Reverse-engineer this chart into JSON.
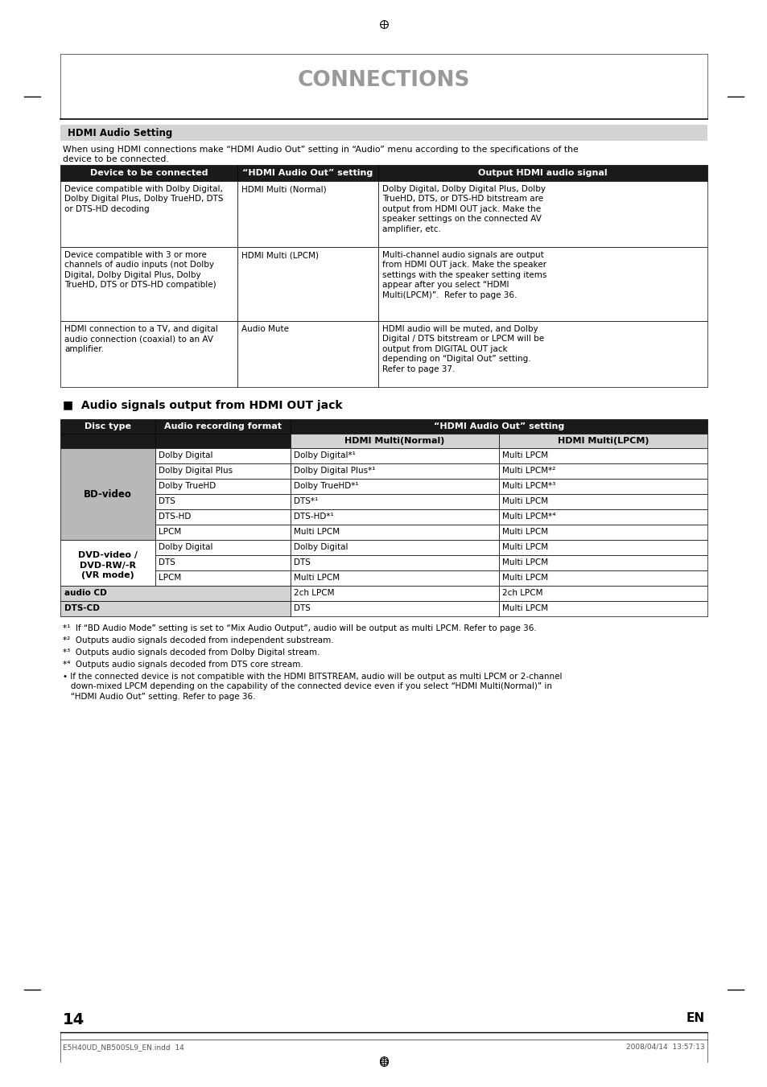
{
  "page_title": "CONNECTIONS",
  "section1_header": "HDMI Audio Setting",
  "section1_intro": "When using HDMI connections make “HDMI Audio Out” setting in “Audio” menu according to the specifications of the\ndevice to be connected.",
  "table1_headers": [
    "Device to be connected",
    "“HDMI Audio Out” setting",
    "Output HDMI audio signal"
  ],
  "table1_rows": [
    [
      "Device compatible with Dolby Digital,\nDolby Digital Plus, Dolby TrueHD, DTS\nor DTS-HD decoding",
      "HDMI Multi (Normal)",
      "Dolby Digital, Dolby Digital Plus, Dolby\nTrueHD, DTS, or DTS-HD bitstream are\noutput from HDMI OUT jack. Make the\nspeaker settings on the connected AV\namplifier, etc."
    ],
    [
      "Device compatible with 3 or more\nchannels of audio inputs (not Dolby\nDigital, Dolby Digital Plus, Dolby\nTrueHD, DTS or DTS-HD compatible)",
      "HDMI Multi (LPCM)",
      "Multi-channel audio signals are output\nfrom HDMI OUT jack. Make the speaker\nsettings with the speaker setting items\nappear after you select “HDMI\nMulti(LPCM)”.  Refer to page 36."
    ],
    [
      "HDMI connection to a TV, and digital\naudio connection (coaxial) to an AV\namplifier.",
      "Audio Mute",
      "HDMI audio will be muted, and Dolby\nDigital / DTS bitstream or LPCM will be\noutput from DIGITAL OUT jack\ndepending on “Digital Out” setting.\nRefer to page 37."
    ]
  ],
  "section2_header": "■  Audio signals output from HDMI OUT jack",
  "table2_subheader": "“HDMI Audio Out” setting",
  "table2_rows": [
    [
      "BD-video",
      "Dolby Digital",
      "Dolby Digital*¹",
      "Multi LPCM",
      "bd"
    ],
    [
      "BD-video",
      "Dolby Digital Plus",
      "Dolby Digital Plus*¹",
      "Multi LPCM*²",
      "bd"
    ],
    [
      "BD-video",
      "Dolby TrueHD",
      "Dolby TrueHD*¹",
      "Multi LPCM*³",
      "bd"
    ],
    [
      "BD-video",
      "DTS",
      "DTS*¹",
      "Multi LPCM",
      "bd"
    ],
    [
      "BD-video",
      "DTS-HD",
      "DTS-HD*¹",
      "Multi LPCM*⁴",
      "bd"
    ],
    [
      "BD-video",
      "LPCM",
      "Multi LPCM",
      "Multi LPCM",
      "bd"
    ],
    [
      "DVD-video /\nDVD-RW/-R\n(VR mode)",
      "Dolby Digital",
      "Dolby Digital",
      "Multi LPCM",
      "dvd"
    ],
    [
      "DVD-video /\nDVD-RW/-R\n(VR mode)",
      "DTS",
      "DTS",
      "Multi LPCM",
      "dvd"
    ],
    [
      "DVD-video /\nDVD-RW/-R\n(VR mode)",
      "LPCM",
      "Multi LPCM",
      "Multi LPCM",
      "dvd"
    ],
    [
      "audio CD",
      "",
      "2ch LPCM",
      "2ch LPCM",
      "audio"
    ],
    [
      "DTS-CD",
      "",
      "DTS",
      "Multi LPCM",
      "dts"
    ]
  ],
  "footnotes": [
    "*¹  If “BD Audio Mode” setting is set to “Mix Audio Output”, audio will be output as multi LPCM. Refer to page 36.",
    "*²  Outputs audio signals decoded from independent substream.",
    "*³  Outputs audio signals decoded from Dolby Digital stream.",
    "*⁴  Outputs audio signals decoded from DTS core stream.",
    "• If the connected device is not compatible with the HDMI BITSTREAM, audio will be output as multi LPCM or 2-channel\n   down-mixed LPCM depending on the capability of the connected device even if you select “HDMI Multi(Normal)” in\n   “HDMI Audio Out” setting. Refer to page 36."
  ],
  "page_number": "14",
  "page_footer": "EN",
  "file_info": "E5H40UD_NB500SL9_EN.indd  14",
  "date_info": "2008/04/14  13:57:13",
  "bg_color": "#ffffff",
  "table_header_bg": "#1a1a1a",
  "table_alt_bg": "#d3d3d3",
  "table_bd_bg": "#b8b8b8",
  "section_header_bg": "#d3d3d3",
  "title_color": "#999999",
  "border_color": "#000000"
}
